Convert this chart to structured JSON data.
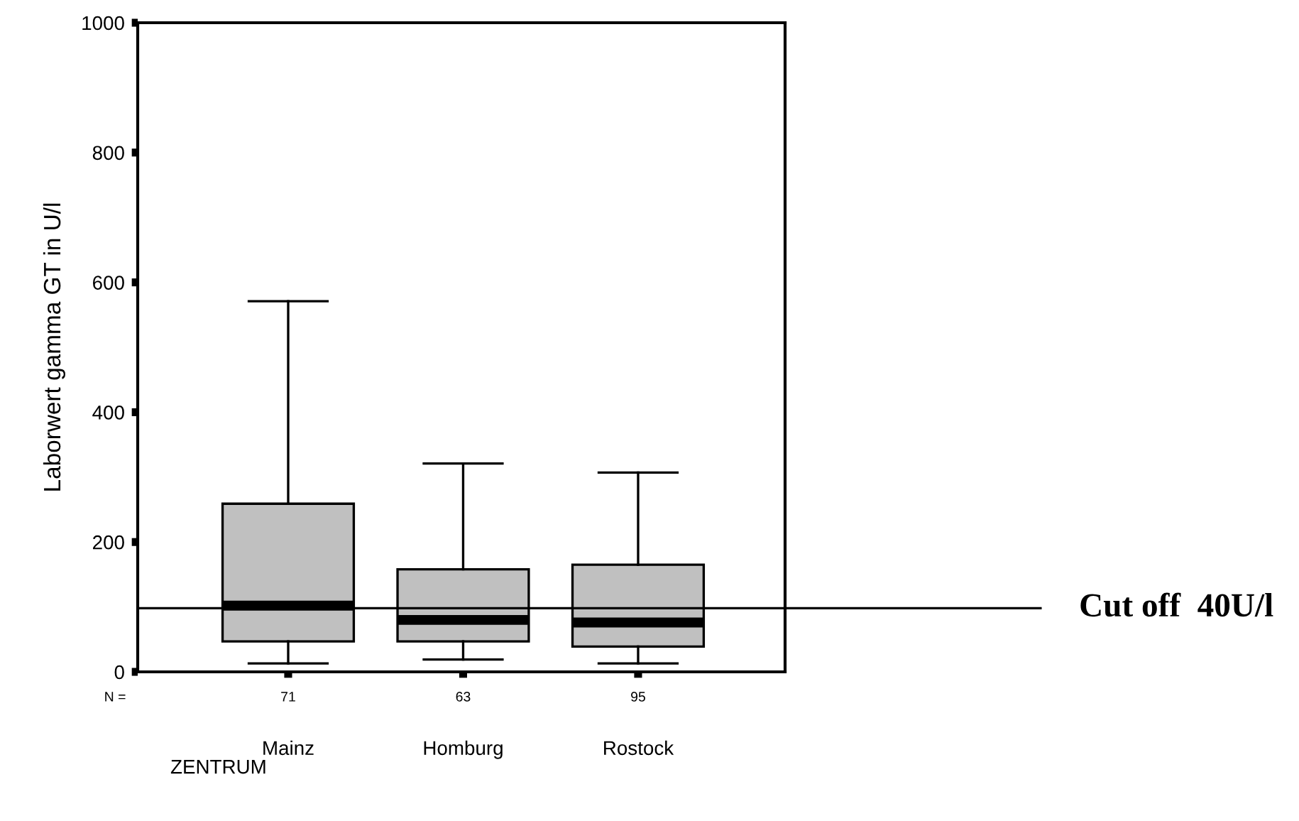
{
  "chart_data": {
    "type": "box",
    "ylabel": "Laborwert gamma GT in U/l",
    "xlabel": "ZENTRUM",
    "categories": [
      "Mainz",
      "Homburg",
      "Rostock"
    ],
    "color": "#c0c0c0",
    "boxes": [
      {
        "low": 13,
        "q1": 47,
        "median": 102,
        "q3": 259,
        "high": 571
      },
      {
        "low": 19,
        "q1": 47,
        "median": 80,
        "q3": 158,
        "high": 321
      },
      {
        "low": 13,
        "q1": 39,
        "median": 76,
        "q3": 165,
        "high": 307
      }
    ],
    "ylim": [
      0,
      1000
    ],
    "yticks": [
      0,
      200,
      400,
      600,
      800,
      1000
    ],
    "grid": false,
    "legend": false,
    "ref_lines": [
      {
        "axis": "y",
        "value": 98,
        "label": "Cut off  40U/l",
        "color": "#000000"
      }
    ],
    "annotations": [
      "N =",
      "71",
      "63",
      "95"
    ]
  }
}
